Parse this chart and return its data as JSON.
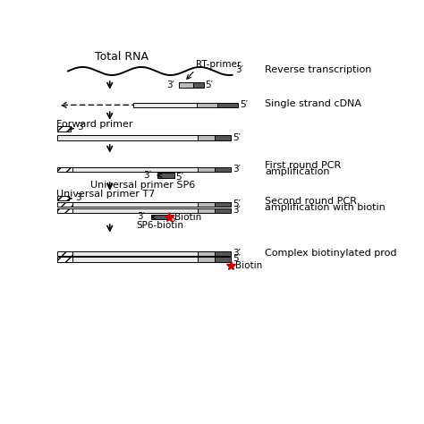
{
  "bg_color": "#ffffff",
  "text_color": "#000000",
  "line_color": "#000000",
  "gray_dark": "#555555",
  "gray_light": "#bbbbbb",
  "gray_lighter": "#e8e8e8",
  "red_star": "#cc0000",
  "labels": {
    "total_rna": "Total RNA",
    "rt_primer": "RT-primer",
    "reverse_transcription": "Reverse transcription",
    "single_strand_cdna": "Single strand cDNA",
    "forward_primer": "Forward primer",
    "first_round_l1": "First round PCR",
    "first_round_l2": "amplification",
    "universal_sp6": "Universal primer SP6",
    "universal_t7": "Universal primer T7",
    "second_round_l1": "Second round PCR",
    "second_round_l2": "amplification with biotin",
    "sp6_biotin": "SP6-biotin",
    "biotin": "Biotin",
    "complex_l1": "Complex biotinylated prod"
  },
  "font_size_main": 9,
  "font_size_small": 8,
  "font_size_prime": 7.5
}
